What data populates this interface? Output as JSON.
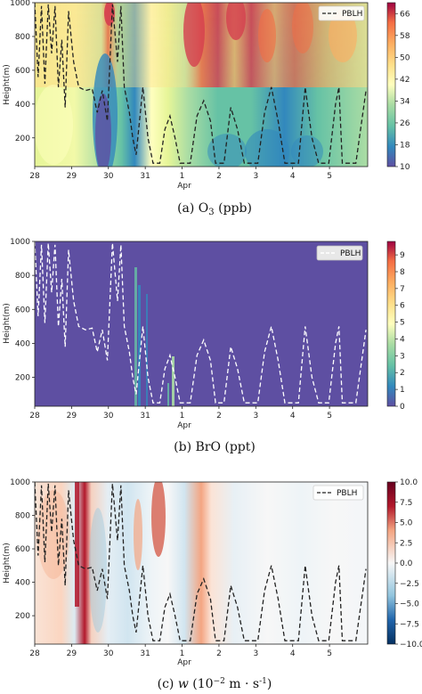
{
  "chart_data": [
    {
      "type": "heatmap",
      "caption": "(a) O3 (ppb)",
      "ylabel": "Height(m)",
      "xlabel": "Apr",
      "x_ticks": [
        "28",
        "29",
        "30",
        "31",
        "1",
        "2",
        "3",
        "4",
        "5"
      ],
      "y_ticks": [
        200,
        400,
        600,
        800,
        1000
      ],
      "ylim": [
        30,
        1000
      ],
      "colorbar_ticks": [
        10,
        18,
        26,
        34,
        42,
        50,
        58,
        66
      ],
      "colorbar_range": [
        10,
        70
      ],
      "colormap": "Spectral_r",
      "legend": {
        "label": "PBLH",
        "line_style": "dashed",
        "color": "#222222",
        "placement": "top-right"
      },
      "pblh_series": [
        {
          "x": 0.0,
          "y": 1000
        },
        {
          "x": 0.1,
          "y": 560
        },
        {
          "x": 0.2,
          "y": 980
        },
        {
          "x": 0.3,
          "y": 520
        },
        {
          "x": 0.4,
          "y": 990
        },
        {
          "x": 0.5,
          "y": 700
        },
        {
          "x": 0.6,
          "y": 980
        },
        {
          "x": 0.7,
          "y": 500
        },
        {
          "x": 0.8,
          "y": 780
        },
        {
          "x": 0.9,
          "y": 380
        },
        {
          "x": 1.0,
          "y": 950
        },
        {
          "x": 1.15,
          "y": 650
        },
        {
          "x": 1.3,
          "y": 500
        },
        {
          "x": 1.5,
          "y": 480
        },
        {
          "x": 1.7,
          "y": 490
        },
        {
          "x": 1.85,
          "y": 350
        },
        {
          "x": 2.0,
          "y": 480
        },
        {
          "x": 2.15,
          "y": 300
        },
        {
          "x": 2.3,
          "y": 990
        },
        {
          "x": 2.45,
          "y": 650
        },
        {
          "x": 2.55,
          "y": 980
        },
        {
          "x": 2.65,
          "y": 500
        },
        {
          "x": 2.8,
          "y": 350
        },
        {
          "x": 2.9,
          "y": 200
        },
        {
          "x": 3.0,
          "y": 100
        },
        {
          "x": 3.1,
          "y": 300
        },
        {
          "x": 3.2,
          "y": 500
        },
        {
          "x": 3.35,
          "y": 200
        },
        {
          "x": 3.5,
          "y": 50
        },
        {
          "x": 3.7,
          "y": 50
        },
        {
          "x": 3.85,
          "y": 250
        },
        {
          "x": 4.0,
          "y": 330
        },
        {
          "x": 4.15,
          "y": 200
        },
        {
          "x": 4.3,
          "y": 50
        },
        {
          "x": 4.6,
          "y": 50
        },
        {
          "x": 4.8,
          "y": 330
        },
        {
          "x": 5.0,
          "y": 420
        },
        {
          "x": 5.2,
          "y": 300
        },
        {
          "x": 5.35,
          "y": 50
        },
        {
          "x": 5.6,
          "y": 50
        },
        {
          "x": 5.8,
          "y": 380
        },
        {
          "x": 6.0,
          "y": 250
        },
        {
          "x": 6.2,
          "y": 50
        },
        {
          "x": 6.6,
          "y": 50
        },
        {
          "x": 6.8,
          "y": 350
        },
        {
          "x": 7.0,
          "y": 500
        },
        {
          "x": 7.2,
          "y": 300
        },
        {
          "x": 7.4,
          "y": 50
        },
        {
          "x": 7.8,
          "y": 50
        },
        {
          "x": 8.0,
          "y": 500
        },
        {
          "x": 8.2,
          "y": 200
        },
        {
          "x": 8.4,
          "y": 50
        },
        {
          "x": 8.7,
          "y": 50
        },
        {
          "x": 8.9,
          "y": 400
        },
        {
          "x": 9.0,
          "y": 500
        },
        {
          "x": 9.1,
          "y": 50
        },
        {
          "x": 9.5,
          "y": 50
        },
        {
          "x": 9.8,
          "y": 480
        }
      ]
    },
    {
      "type": "heatmap",
      "caption": "(b) BrO (ppt)",
      "ylabel": "Height(m)",
      "xlabel": "Apr",
      "x_ticks": [
        "28",
        "29",
        "30",
        "31",
        "1",
        "2",
        "3",
        "4",
        "5"
      ],
      "y_ticks": [
        200,
        400,
        600,
        800,
        1000
      ],
      "ylim": [
        30,
        1000
      ],
      "colorbar_ticks": [
        0,
        1,
        2,
        3,
        4,
        5,
        6,
        7,
        8,
        9
      ],
      "colorbar_range": [
        0,
        9.8
      ],
      "colormap": "Spectral_r",
      "legend": {
        "label": "PBLH",
        "line_style": "dashed",
        "color": "#ffffff",
        "placement": "top-right"
      }
    },
    {
      "type": "heatmap",
      "caption": "(c) w (10−2 m · s-1)",
      "ylabel": "Height(m)",
      "xlabel": "Apr",
      "x_ticks": [
        "28",
        "29",
        "30",
        "31",
        "1",
        "2",
        "3",
        "4",
        "5"
      ],
      "y_ticks": [
        200,
        400,
        600,
        800,
        1000
      ],
      "ylim": [
        30,
        1000
      ],
      "colorbar_ticks": [
        "10.0",
        "7.5",
        "5.0",
        "2.5",
        "0.0",
        "−2.5",
        "−5.0",
        "−7.5",
        "−10.0"
      ],
      "colorbar_range": [
        -10,
        10
      ],
      "colormap": "RdBu_r",
      "legend": {
        "label": "PBLH",
        "line_style": "dashed",
        "color": "#222222",
        "placement": "top-right"
      }
    }
  ]
}
